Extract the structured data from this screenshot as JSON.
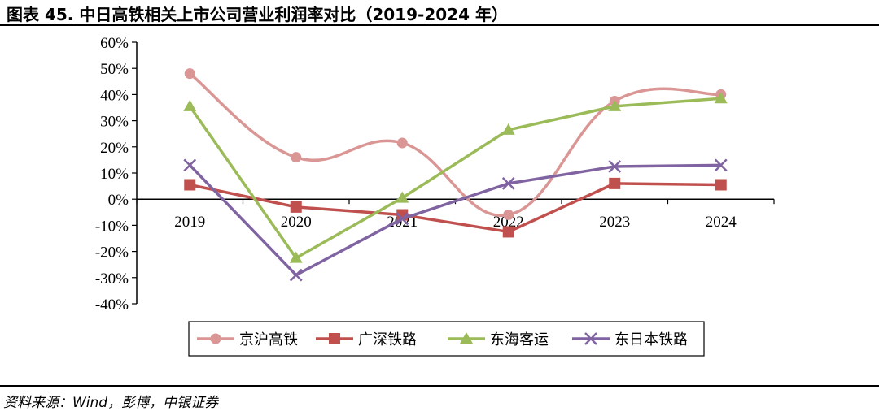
{
  "header": {
    "title": "图表 45. 中日高铁相关上市公司营业利润率对比（2019-2024 年）"
  },
  "footer": {
    "source": "资料来源：Wind，彭博，中银证券"
  },
  "chart_data": {
    "type": "line",
    "categories": [
      "2019",
      "2020",
      "2021",
      "2022",
      "2023",
      "2024"
    ],
    "yticks": [
      "60%",
      "50%",
      "40%",
      "30%",
      "20%",
      "10%",
      "0%",
      "-10%",
      "-20%",
      "-30%",
      "-40%"
    ],
    "ylim": [
      -40,
      60
    ],
    "grid": false,
    "legend_position": "bottom",
    "series": [
      {
        "name": "京沪高铁",
        "color": "#d99694",
        "marker": "circle",
        "smooth": true,
        "values": [
          48,
          16,
          21.5,
          -6,
          37.5,
          40
        ]
      },
      {
        "name": "广深铁路",
        "color": "#c0504d",
        "marker": "square",
        "smooth": false,
        "values": [
          5.5,
          -3,
          -6,
          -12.5,
          6,
          5.5
        ]
      },
      {
        "name": "东海客运",
        "color": "#9bbb59",
        "marker": "triangle",
        "smooth": false,
        "values": [
          35.5,
          -22.5,
          0.5,
          26.5,
          35.5,
          38.5
        ]
      },
      {
        "name": "东日本铁路",
        "color": "#8064a2",
        "marker": "x",
        "smooth": false,
        "values": [
          13,
          -29,
          -7.5,
          6,
          12.5,
          13
        ]
      }
    ]
  }
}
